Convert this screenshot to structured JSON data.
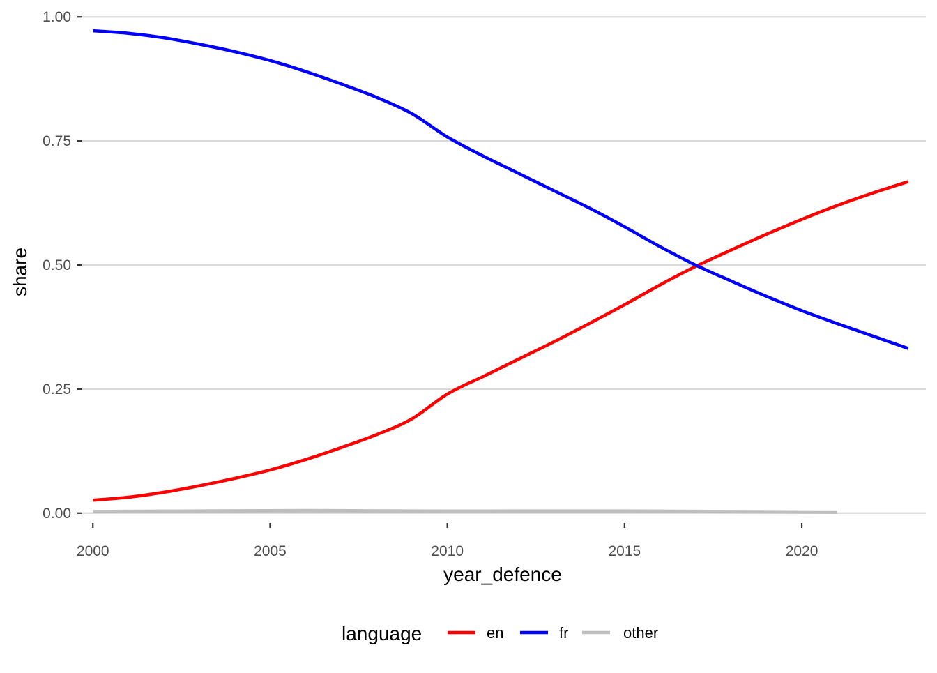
{
  "chart_data": {
    "type": "line",
    "xlabel": "year_defence",
    "ylabel": "share",
    "xlim": [
      1999.7,
      2023.5
    ],
    "ylim": [
      -0.02,
      1.02
    ],
    "x_ticks": [
      2000,
      2005,
      2010,
      2015,
      2020
    ],
    "x_tick_labels": [
      "2000",
      "2005",
      "2010",
      "2015",
      "2020"
    ],
    "y_ticks": [
      0,
      0.25,
      0.5,
      0.75,
      1.0
    ],
    "y_tick_labels": [
      "0.00",
      "0.25",
      "0.50",
      "0.75",
      "1.00"
    ],
    "grid": "horizontal major",
    "legend": {
      "title": "language",
      "position": "bottom",
      "entries": [
        "en",
        "fr",
        "other"
      ]
    },
    "series": [
      {
        "name": "en",
        "color": "#ff0000",
        "x": [
          2000,
          2001,
          2002,
          2003,
          2004,
          2005,
          2006,
          2007,
          2008,
          2009,
          2010,
          2011,
          2012,
          2013,
          2014,
          2015,
          2016,
          2017,
          2018,
          2019,
          2020,
          2021,
          2022,
          2023
        ],
        "values": [
          0.026,
          0.032,
          0.042,
          0.055,
          0.07,
          0.087,
          0.108,
          0.132,
          0.158,
          0.19,
          0.24,
          0.275,
          0.31,
          0.345,
          0.382,
          0.42,
          0.46,
          0.497,
          0.53,
          0.562,
          0.592,
          0.62,
          0.645,
          0.668
        ]
      },
      {
        "name": "fr",
        "color": "#0000ff",
        "x": [
          2000,
          2001,
          2002,
          2003,
          2004,
          2005,
          2006,
          2007,
          2008,
          2009,
          2010,
          2011,
          2012,
          2013,
          2014,
          2015,
          2016,
          2017,
          2018,
          2019,
          2020,
          2021,
          2022,
          2023
        ],
        "values": [
          0.972,
          0.967,
          0.958,
          0.945,
          0.93,
          0.912,
          0.89,
          0.865,
          0.838,
          0.805,
          0.758,
          0.72,
          0.685,
          0.65,
          0.615,
          0.577,
          0.537,
          0.5,
          0.468,
          0.437,
          0.408,
          0.382,
          0.357,
          0.332
        ]
      },
      {
        "name": "other",
        "color": "#bebebe",
        "x": [
          2000,
          2003,
          2006,
          2009,
          2012,
          2015,
          2018,
          2021
        ],
        "values": [
          0.003,
          0.004,
          0.005,
          0.004,
          0.004,
          0.004,
          0.003,
          0.002
        ]
      }
    ]
  }
}
